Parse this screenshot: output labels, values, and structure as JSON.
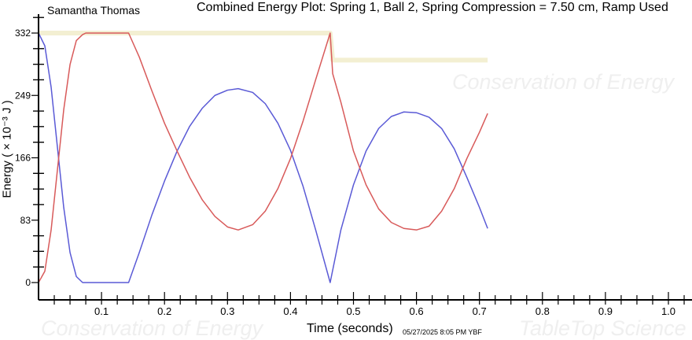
{
  "watermarks": {
    "top_left": "Conservation of Energy",
    "bottom_left": "Conservation of Energy",
    "bottom_right": "TableTop Science"
  },
  "author": "Samantha Thomas",
  "timestamp": "05/27/2025  8:05 PM  YBF",
  "colors": {
    "kinetic": "#5a5ad6",
    "potential": "#d85a5a",
    "total": "#f3efd2"
  },
  "chart_data": {
    "type": "line",
    "title": "Combined Energy Plot: Spring 1, Ball 2, Spring Compression = 7.50 cm, Ramp Used",
    "xlabel": "Time (seconds)",
    "ylabel": "Energy ( × 10⁻³ J )",
    "xlim": [
      0,
      1.0
    ],
    "ylim": [
      0,
      332
    ],
    "xticks": [
      "0.1",
      "0.2",
      "0.3",
      "0.4",
      "0.5",
      "0.6",
      "0.7",
      "0.8",
      "0.9",
      "1.0"
    ],
    "yticks": [
      "0",
      "83",
      "166",
      "249",
      "332"
    ],
    "grid": false,
    "series": [
      {
        "color": "#f3efd2",
        "x": [
          0,
          0.463,
          0.467,
          0.713
        ],
        "y": [
          332,
          332,
          296,
          296
        ]
      },
      {
        "color": "#5a5ad6",
        "x": [
          0,
          0.01,
          0.02,
          0.03,
          0.04,
          0.05,
          0.06,
          0.07,
          0.143,
          0.16,
          0.18,
          0.2,
          0.22,
          0.24,
          0.26,
          0.28,
          0.3,
          0.317,
          0.34,
          0.36,
          0.38,
          0.4,
          0.42,
          0.44,
          0.463,
          0.48,
          0.5,
          0.52,
          0.54,
          0.56,
          0.58,
          0.6,
          0.62,
          0.64,
          0.66,
          0.68,
          0.7,
          0.713
        ],
        "y": [
          332,
          315,
          260,
          180,
          100,
          40,
          8,
          0,
          0,
          40,
          90,
          135,
          175,
          208,
          232,
          249,
          256,
          258,
          253,
          238,
          212,
          176,
          128,
          70,
          0,
          70,
          130,
          175,
          205,
          221,
          227,
          226,
          220,
          205,
          178,
          140,
          100,
          72
        ]
      },
      {
        "color": "#d85a5a",
        "x": [
          0,
          0.01,
          0.02,
          0.03,
          0.04,
          0.05,
          0.06,
          0.07,
          0.075,
          0.143,
          0.16,
          0.18,
          0.2,
          0.22,
          0.24,
          0.26,
          0.28,
          0.3,
          0.317,
          0.34,
          0.36,
          0.38,
          0.4,
          0.42,
          0.44,
          0.463,
          0.467,
          0.48,
          0.5,
          0.52,
          0.54,
          0.56,
          0.58,
          0.6,
          0.62,
          0.64,
          0.66,
          0.68,
          0.7,
          0.713
        ],
        "y": [
          0,
          15,
          70,
          150,
          230,
          290,
          322,
          330,
          332,
          332,
          300,
          255,
          212,
          175,
          140,
          110,
          88,
          74,
          70,
          77,
          95,
          125,
          165,
          215,
          270,
          332,
          278,
          240,
          175,
          130,
          98,
          80,
          72,
          70,
          75,
          95,
          125,
          165,
          200,
          225
        ]
      }
    ]
  }
}
